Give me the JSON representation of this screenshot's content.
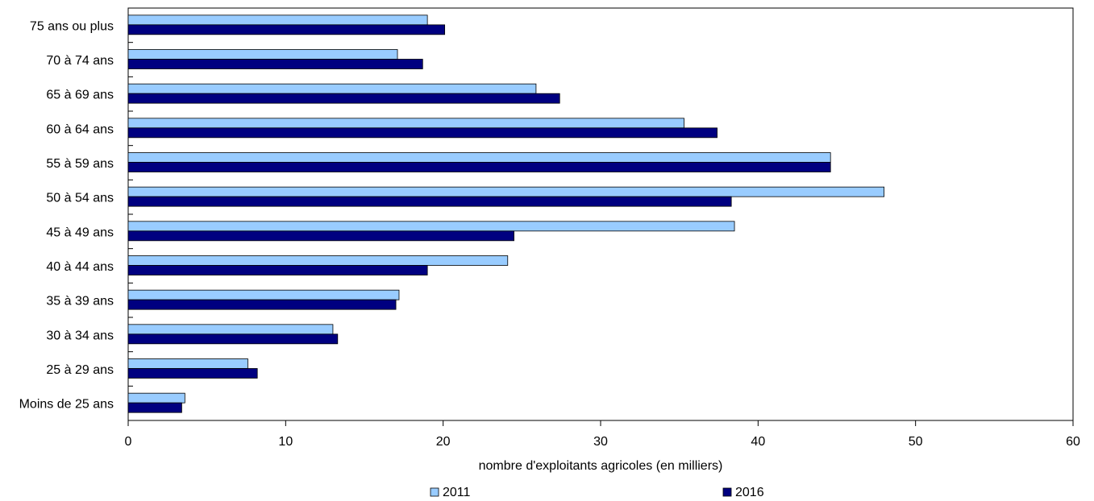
{
  "chart_data": {
    "type": "bar",
    "orientation": "horizontal",
    "categories": [
      "75 ans ou plus",
      "70 à 74 ans",
      "65 à 69 ans",
      "60 à 64 ans",
      "55 à 59 ans",
      "50 à 54 ans",
      "45 à 49 ans",
      "40 à 44 ans",
      "35 à 39 ans",
      "30 à 34 ans",
      "25 à 29 ans",
      "Moins de 25 ans"
    ],
    "series": [
      {
        "name": "2011",
        "color": "#99ccff",
        "values": [
          19.0,
          17.1,
          25.9,
          35.3,
          44.6,
          48.0,
          38.5,
          24.1,
          17.2,
          13.0,
          7.6,
          3.6
        ]
      },
      {
        "name": "2016",
        "color": "#000080",
        "values": [
          20.1,
          18.7,
          27.4,
          37.4,
          44.6,
          38.3,
          24.5,
          19.0,
          17.0,
          13.3,
          8.2,
          3.4
        ]
      }
    ],
    "xlim": [
      0,
      60
    ],
    "xticks": [
      "0",
      "10",
      "20",
      "30",
      "40",
      "50",
      "60"
    ],
    "xlabel": "nombre d'exploitants agricoles (en milliers)",
    "ylabel": "",
    "title": "",
    "grid": false,
    "legend": {
      "position": "bottom",
      "entries": [
        "2011",
        "2016"
      ]
    }
  }
}
